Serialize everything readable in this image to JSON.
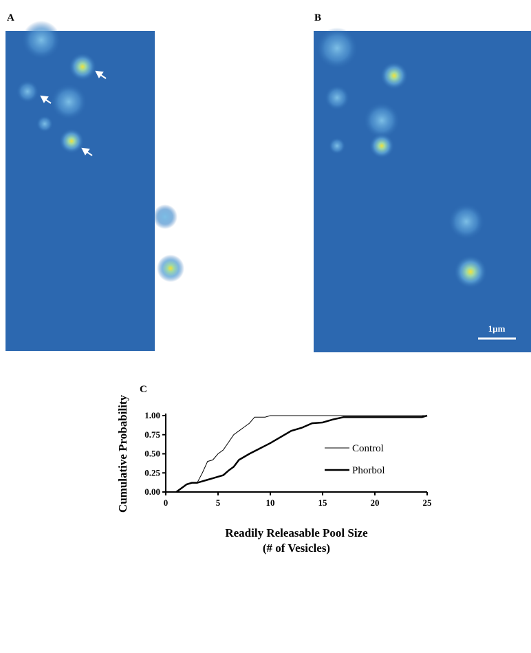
{
  "panels": {
    "a_label": "A",
    "b_label": "B",
    "c_label": "C",
    "scale_bar": "1µm"
  },
  "chart_data": {
    "type": "line",
    "ylabel": "Cumulative Probability",
    "xlabel": [
      "Readily Releasable Pool Size",
      "(# of Vesicles)"
    ],
    "xlim": [
      0,
      25
    ],
    "xticks": [
      0,
      5,
      10,
      15,
      20,
      25
    ],
    "ylim": [
      0,
      1
    ],
    "yticks": [
      {
        "value": 0,
        "label": "0.00"
      },
      {
        "value": 0.25,
        "label": "0.25"
      },
      {
        "value": 0.5,
        "label": "0.50"
      },
      {
        "value": 0.75,
        "label": "0.75"
      },
      {
        "value": 1,
        "label": "1.00"
      }
    ],
    "legend": "right",
    "series": [
      {
        "name": "Control",
        "color": "#000000",
        "line_width": 1,
        "x": [
          1,
          2,
          2.5,
          3,
          3.5,
          4,
          4.5,
          5,
          5.5,
          6,
          6.5,
          7,
          7.5,
          8,
          8.5,
          9,
          9.5,
          10,
          25
        ],
        "values": [
          0,
          0.1,
          0.12,
          0.12,
          0.25,
          0.4,
          0.42,
          0.5,
          0.55,
          0.65,
          0.75,
          0.8,
          0.85,
          0.9,
          0.98,
          0.98,
          0.98,
          1,
          1
        ]
      },
      {
        "name": "Phorbol",
        "color": "#000000",
        "line_width": 2.5,
        "x": [
          1,
          1.5,
          2,
          2.5,
          3,
          3.5,
          4,
          4.5,
          5,
          5.5,
          6,
          6.5,
          7,
          8,
          9,
          10,
          11,
          12,
          13,
          14,
          15,
          16,
          17,
          24.5,
          25
        ],
        "values": [
          0,
          0.05,
          0.1,
          0.12,
          0.12,
          0.14,
          0.16,
          0.18,
          0.2,
          0.22,
          0.28,
          0.33,
          0.42,
          0.5,
          0.57,
          0.64,
          0.72,
          0.8,
          0.84,
          0.9,
          0.91,
          0.95,
          0.98,
          0.98,
          1
        ]
      }
    ]
  }
}
